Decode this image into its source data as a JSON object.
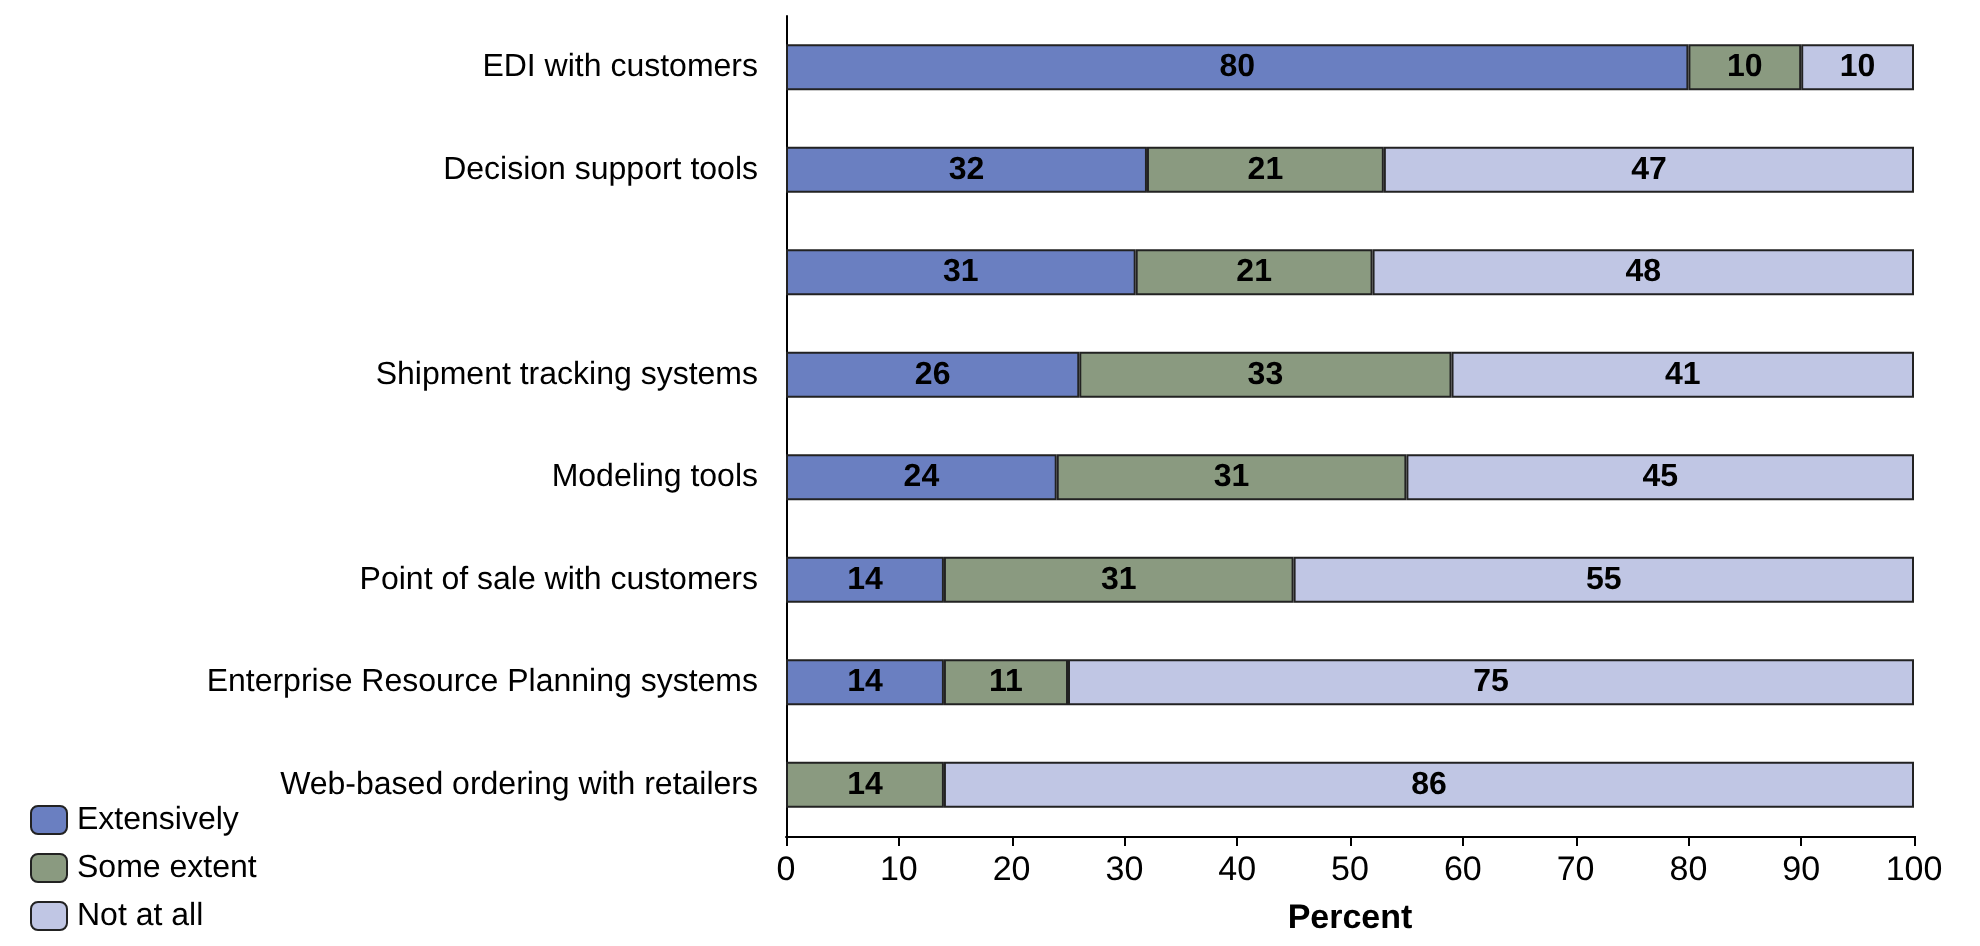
{
  "chart_data": {
    "type": "bar",
    "orientation": "horizontal",
    "stacked": true,
    "xlabel": "Percent",
    "categories": [
      "EDI with customers",
      "Decision support tools",
      null,
      "Shipment tracking systems",
      "Modeling tools",
      "Point of sale with customers",
      "Enterprise Resource Planning systems",
      "Web-based ordering with retailers"
    ],
    "series": [
      {
        "name": "Extensively",
        "color": "#6a7fc1",
        "values": [
          80,
          32,
          31,
          26,
          24,
          14,
          14,
          null
        ]
      },
      {
        "name": "Some extent",
        "color": "#8a9a80",
        "values": [
          10,
          21,
          21,
          33,
          31,
          31,
          11,
          14
        ]
      },
      {
        "name": "Not at all",
        "color": "#c0c6e4",
        "values": [
          10,
          47,
          48,
          41,
          45,
          55,
          75,
          86
        ]
      }
    ],
    "xlim": [
      0,
      100
    ],
    "xticks": [
      0,
      10,
      20,
      30,
      40,
      50,
      60,
      70,
      80,
      90,
      100
    ],
    "data_labels": true,
    "legend": "bottom left",
    "grid": false
  }
}
